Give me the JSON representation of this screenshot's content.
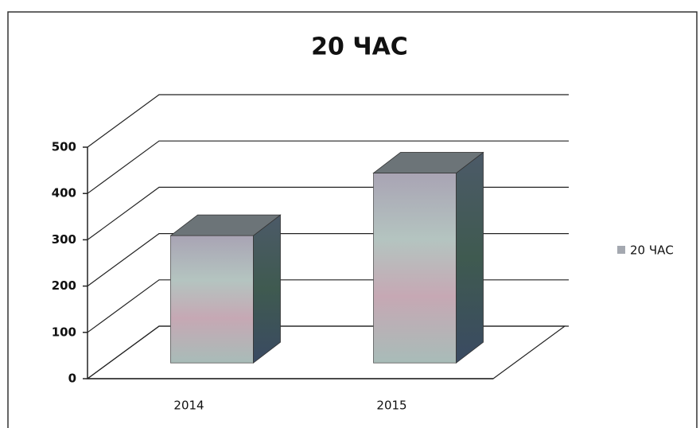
{
  "chart_data": {
    "type": "bar3d",
    "title": "20 ЧАС",
    "categories": [
      "2014",
      "2015"
    ],
    "series": [
      {
        "name": "20 ЧАС",
        "color": "#a4a8b0",
        "values": [
          275,
          410
        ]
      }
    ],
    "ylim": [
      0,
      500
    ],
    "yticks": [
      0,
      100,
      200,
      300,
      400,
      500
    ],
    "grid": true,
    "legend": "right"
  }
}
